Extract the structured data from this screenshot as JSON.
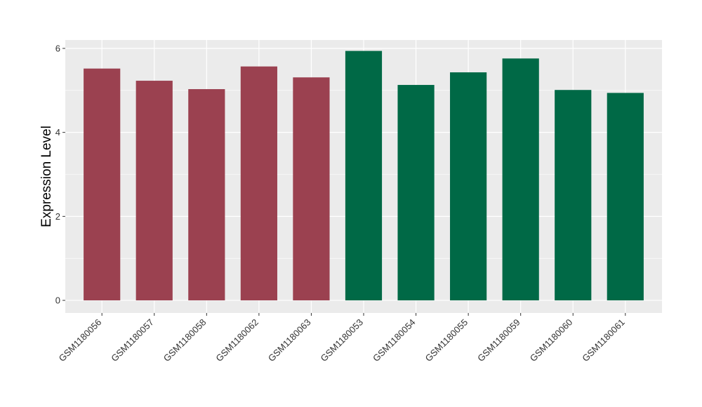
{
  "chart_data": {
    "type": "bar",
    "title": "",
    "xlabel": "",
    "ylabel": "Expression Level",
    "ylim": [
      -0.3,
      6.2
    ],
    "yticks": [
      0,
      2,
      4,
      6
    ],
    "grid": true,
    "categories": [
      "GSM1180056",
      "GSM1180057",
      "GSM1180058",
      "GSM1180062",
      "GSM1180063",
      "GSM1180053",
      "GSM1180054",
      "GSM1180055",
      "GSM1180059",
      "GSM1180060",
      "GSM1180061"
    ],
    "values": [
      5.52,
      5.23,
      5.03,
      5.57,
      5.31,
      5.94,
      5.13,
      5.43,
      5.76,
      5.01,
      4.94
    ],
    "colors": [
      "#9b4150",
      "#9b4150",
      "#9b4150",
      "#9b4150",
      "#9b4150",
      "#006946",
      "#006946",
      "#006946",
      "#006946",
      "#006946",
      "#006946"
    ],
    "panel_background": "#ebebeb",
    "grid_color": "#ffffff"
  }
}
